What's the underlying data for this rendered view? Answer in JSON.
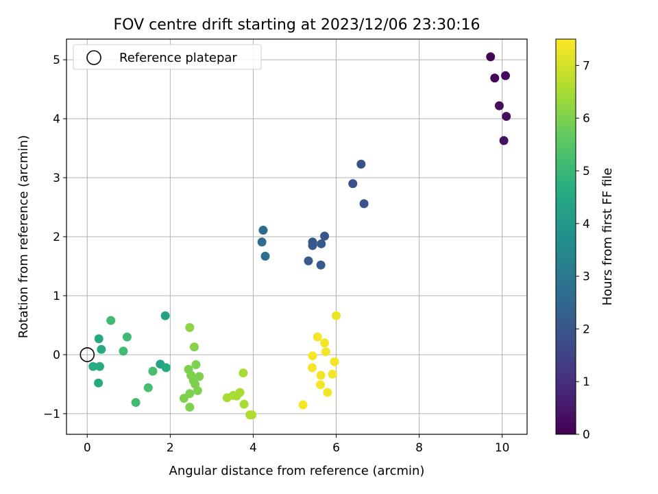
{
  "chart_data": {
    "type": "scatter",
    "title": "FOV centre drift starting at 2023/12/06 23:30:16",
    "xlabel": "Angular distance from reference (arcmin)",
    "ylabel": "Rotation from reference (arcmin)",
    "xlim": [
      -0.5,
      10.6
    ],
    "ylim": [
      -1.35,
      5.35
    ],
    "xticks": [
      0,
      2,
      4,
      6,
      8,
      10
    ],
    "yticks": [
      -1,
      0,
      1,
      2,
      3,
      4,
      5
    ],
    "grid": true,
    "legend": {
      "position": "top-left",
      "entries": [
        "Reference platepar"
      ]
    },
    "reference_point": {
      "x": 0,
      "y": 0
    },
    "colorbar": {
      "label": "Hours from first FF file",
      "min": 0,
      "max": 7.5,
      "ticks": [
        0,
        1,
        2,
        3,
        4,
        5,
        6,
        7
      ],
      "colormap": "viridis"
    },
    "points": [
      {
        "x": 9.72,
        "y": 5.05,
        "c": 0.1
      },
      {
        "x": 9.82,
        "y": 4.69,
        "c": 0.15
      },
      {
        "x": 10.08,
        "y": 4.73,
        "c": 0.2
      },
      {
        "x": 9.93,
        "y": 4.22,
        "c": 0.25
      },
      {
        "x": 10.1,
        "y": 4.04,
        "c": 0.3
      },
      {
        "x": 10.04,
        "y": 3.63,
        "c": 0.35
      },
      {
        "x": 6.6,
        "y": 3.23,
        "c": 1.8
      },
      {
        "x": 6.4,
        "y": 2.9,
        "c": 1.85
      },
      {
        "x": 6.67,
        "y": 2.56,
        "c": 1.9
      },
      {
        "x": 5.72,
        "y": 2.01,
        "c": 2.0
      },
      {
        "x": 5.43,
        "y": 1.91,
        "c": 2.05
      },
      {
        "x": 5.43,
        "y": 1.85,
        "c": 2.1
      },
      {
        "x": 5.64,
        "y": 1.88,
        "c": 2.1
      },
      {
        "x": 5.33,
        "y": 1.59,
        "c": 2.2
      },
      {
        "x": 5.63,
        "y": 1.52,
        "c": 2.15
      },
      {
        "x": 4.24,
        "y": 2.11,
        "c": 2.6
      },
      {
        "x": 4.21,
        "y": 1.91,
        "c": 2.65
      },
      {
        "x": 4.29,
        "y": 1.67,
        "c": 2.7
      },
      {
        "x": 1.88,
        "y": 0.66,
        "c": 4.2
      },
      {
        "x": 1.76,
        "y": -0.16,
        "c": 4.3
      },
      {
        "x": 1.9,
        "y": -0.22,
        "c": 4.6
      },
      {
        "x": 0.28,
        "y": 0.27,
        "c": 4.5
      },
      {
        "x": 0.34,
        "y": 0.09,
        "c": 4.55
      },
      {
        "x": 0.14,
        "y": -0.2,
        "c": 4.6
      },
      {
        "x": 0.3,
        "y": -0.2,
        "c": 4.6
      },
      {
        "x": 0.27,
        "y": -0.48,
        "c": 4.5
      },
      {
        "x": 0.57,
        "y": 0.58,
        "c": 5.1
      },
      {
        "x": 0.96,
        "y": 0.3,
        "c": 5.1
      },
      {
        "x": 0.87,
        "y": 0.06,
        "c": 5.1
      },
      {
        "x": 1.58,
        "y": -0.28,
        "c": 5.2
      },
      {
        "x": 1.47,
        "y": -0.56,
        "c": 5.2
      },
      {
        "x": 1.17,
        "y": -0.81,
        "c": 5.1
      },
      {
        "x": 2.47,
        "y": 0.46,
        "c": 6.2
      },
      {
        "x": 2.58,
        "y": 0.13,
        "c": 6.1
      },
      {
        "x": 2.44,
        "y": -0.25,
        "c": 6.0
      },
      {
        "x": 2.62,
        "y": -0.17,
        "c": 6.0
      },
      {
        "x": 2.5,
        "y": -0.35,
        "c": 6.0
      },
      {
        "x": 2.7,
        "y": -0.37,
        "c": 6.0
      },
      {
        "x": 2.56,
        "y": -0.44,
        "c": 6.0
      },
      {
        "x": 2.6,
        "y": -0.5,
        "c": 6.0
      },
      {
        "x": 2.66,
        "y": -0.61,
        "c": 6.0
      },
      {
        "x": 2.47,
        "y": -0.66,
        "c": 6.0
      },
      {
        "x": 2.33,
        "y": -0.74,
        "c": 6.0
      },
      {
        "x": 2.47,
        "y": -0.89,
        "c": 6.0
      },
      {
        "x": 3.76,
        "y": -0.31,
        "c": 6.5
      },
      {
        "x": 3.37,
        "y": -0.73,
        "c": 6.5
      },
      {
        "x": 3.52,
        "y": -0.69,
        "c": 6.5
      },
      {
        "x": 3.6,
        "y": -0.7,
        "c": 6.5
      },
      {
        "x": 3.68,
        "y": -0.64,
        "c": 6.5
      },
      {
        "x": 3.78,
        "y": -0.84,
        "c": 6.5
      },
      {
        "x": 3.92,
        "y": -1.02,
        "c": 6.6
      },
      {
        "x": 3.97,
        "y": -1.02,
        "c": 6.6
      },
      {
        "x": 6.0,
        "y": 0.66,
        "c": 7.3
      },
      {
        "x": 5.55,
        "y": 0.3,
        "c": 7.4
      },
      {
        "x": 5.72,
        "y": 0.2,
        "c": 7.4
      },
      {
        "x": 5.75,
        "y": 0.05,
        "c": 7.4
      },
      {
        "x": 5.43,
        "y": -0.02,
        "c": 7.4
      },
      {
        "x": 5.96,
        "y": -0.12,
        "c": 7.4
      },
      {
        "x": 5.42,
        "y": -0.22,
        "c": 7.4
      },
      {
        "x": 5.91,
        "y": -0.33,
        "c": 7.4
      },
      {
        "x": 5.63,
        "y": -0.35,
        "c": 7.4
      },
      {
        "x": 5.62,
        "y": -0.51,
        "c": 7.4
      },
      {
        "x": 5.79,
        "y": -0.64,
        "c": 7.4
      },
      {
        "x": 5.2,
        "y": -0.85,
        "c": 7.4
      }
    ]
  }
}
